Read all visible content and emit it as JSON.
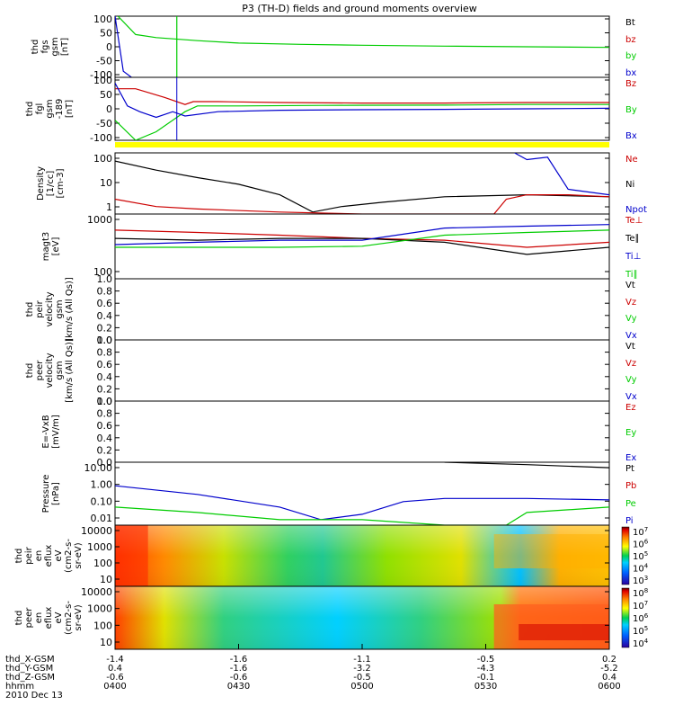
{
  "title": "P3 (TH-D) fields and ground moments overview",
  "colors": {
    "black": "#000000",
    "red": "#cc0000",
    "green": "#00cc00",
    "blue": "#0000cc"
  },
  "panels": [
    {
      "id": "fgs",
      "ylabel": [
        "thd",
        "fgs",
        "gsm",
        "[nT]"
      ],
      "yticks": [
        "100",
        "50",
        "0",
        "-50",
        "-100"
      ],
      "legend": [
        {
          "t": "Bt",
          "c": "black"
        },
        {
          "t": "bz",
          "c": "red"
        },
        {
          "t": "by",
          "c": "green"
        },
        {
          "t": "bx",
          "c": "blue"
        }
      ]
    },
    {
      "id": "fgl",
      "ylabel": [
        "thd",
        "fgl",
        "gsm",
        "-189",
        "[nT]"
      ],
      "yticks": [
        "100",
        "50",
        "0",
        "-50",
        "-100"
      ],
      "legend": [
        {
          "t": "Bz",
          "c": "red"
        },
        {
          "t": "By",
          "c": "green"
        },
        {
          "t": "Bx",
          "c": "blue"
        }
      ]
    },
    {
      "id": "density",
      "ylabel": [
        "Density",
        "[1/cc]",
        "[cm-3]"
      ],
      "yticks": [
        "100",
        "10",
        "1"
      ],
      "legend": [
        {
          "t": "Ne",
          "c": "red"
        },
        {
          "t": "Ni",
          "c": "black"
        },
        {
          "t": "Npot",
          "c": "blue"
        }
      ]
    },
    {
      "id": "temp",
      "ylabel": [
        "magt3",
        "[eV]"
      ],
      "yticks": [
        "1000",
        "100"
      ],
      "legend": [
        {
          "t": "Te⊥",
          "c": "red"
        },
        {
          "t": "Te∥",
          "c": "black"
        },
        {
          "t": "Ti⊥",
          "c": "blue"
        },
        {
          "t": "Ti∥",
          "c": "green"
        }
      ]
    },
    {
      "id": "vi",
      "ylabel": [
        "thd",
        "peir",
        "velocity",
        "gsm",
        "[km/s (All Qs)]"
      ],
      "yticks": [
        "1.0",
        "0.8",
        "0.6",
        "0.4",
        "0.2",
        "0.0"
      ],
      "legend": [
        {
          "t": "Vt",
          "c": "black"
        },
        {
          "t": "Vz",
          "c": "red"
        },
        {
          "t": "Vy",
          "c": "green"
        },
        {
          "t": "Vx",
          "c": "blue"
        }
      ]
    },
    {
      "id": "ve",
      "ylabel": [
        "thd",
        "peer",
        "velocity",
        "gsm",
        "[km/s (All Qs)]"
      ],
      "yticks": [
        "1.0",
        "0.8",
        "0.6",
        "0.4",
        "0.2",
        "0.0"
      ],
      "legend": [
        {
          "t": "Vt",
          "c": "black"
        },
        {
          "t": "Vz",
          "c": "red"
        },
        {
          "t": "Vy",
          "c": "green"
        },
        {
          "t": "Vx",
          "c": "blue"
        }
      ]
    },
    {
      "id": "efield",
      "ylabel": [
        "E=-VxB",
        "[mV/m]"
      ],
      "yticks": [
        "1.0",
        "0.8",
        "0.6",
        "0.4",
        "0.2",
        "0.0"
      ],
      "legend": [
        {
          "t": "Ez",
          "c": "red"
        },
        {
          "t": "Ey",
          "c": "green"
        },
        {
          "t": "Ex",
          "c": "blue"
        }
      ]
    },
    {
      "id": "pressure",
      "ylabel": [
        "Pressure",
        "[nPa]"
      ],
      "yticks": [
        "10.00",
        "1.00",
        "0.10",
        "0.01"
      ],
      "legend": [
        {
          "t": "Pt",
          "c": "black"
        },
        {
          "t": "Pb",
          "c": "red"
        },
        {
          "t": "Pe",
          "c": "green"
        },
        {
          "t": "Pi",
          "c": "blue"
        }
      ]
    },
    {
      "id": "ispec",
      "ylabel": [
        "thd",
        "peir",
        "en",
        "eflux",
        "eV",
        "(cm2-s-",
        "sr-eV)"
      ],
      "yticks": [
        "10000",
        "1000",
        "100",
        "10"
      ],
      "cbar": [
        "10^7",
        "10^6",
        "10^5",
        "10^4",
        "10^3"
      ]
    },
    {
      "id": "espec",
      "ylabel": [
        "thd",
        "peer",
        "en",
        "eflux",
        "eV",
        "(cm2-s-",
        "sr-eV)"
      ],
      "yticks": [
        "10000",
        "1000",
        "100",
        "10"
      ],
      "cbar": [
        "10^8",
        "10^7",
        "10^6",
        "10^5",
        "10^4"
      ]
    }
  ],
  "xaxis": {
    "row_labels": [
      "thd_X-GSM",
      "thd_Y-GSM",
      "thd_Z-GSM",
      "hhmm"
    ],
    "date": "2010 Dec 13",
    "ticks": [
      {
        "x": "-1.4",
        "y": "0.4",
        "z": "-0.6",
        "t": "0400"
      },
      {
        "x": "-1.6",
        "y": "-1.6",
        "z": "-0.6",
        "t": "0430"
      },
      {
        "x": "-1.1",
        "y": "-3.2",
        "z": "-0.5",
        "t": "0500"
      },
      {
        "x": "-0.5",
        "y": "-4.3",
        "z": "-0.1",
        "t": "0530"
      },
      {
        "x": "0.2",
        "y": "-5.2",
        "z": "0.4",
        "t": "0600"
      }
    ]
  },
  "chart_data": {
    "type": "line",
    "x_unit": "hhmm",
    "xlim": [
      "0400",
      "0600"
    ],
    "panels": [
      {
        "id": "fgs",
        "scale": "linear",
        "ylim": [
          -100,
          100
        ],
        "series": [
          {
            "name": "by",
            "values": [
              [
                0,
                110
              ],
              [
                5,
                40
              ],
              [
                10,
                30
              ],
              [
                20,
                20
              ],
              [
                30,
                12
              ],
              [
                45,
                8
              ],
              [
                60,
                5
              ],
              [
                80,
                2
              ],
              [
                100,
                0
              ],
              [
                120,
                -2
              ]
            ]
          },
          {
            "name": "bx",
            "values": [
              [
                0,
                100
              ],
              [
                2,
                -80
              ],
              [
                4,
                -100
              ]
            ]
          }
        ]
      },
      {
        "id": "fgl",
        "scale": "linear",
        "ylim": [
          -120,
          100
        ],
        "series": [
          {
            "name": "Bz",
            "values": [
              [
                0,
                60
              ],
              [
                5,
                60
              ],
              [
                12,
                30
              ],
              [
                17,
                5
              ],
              [
                19,
                15
              ],
              [
                25,
                15
              ],
              [
                40,
                12
              ],
              [
                60,
                10
              ],
              [
                80,
                10
              ],
              [
                100,
                12
              ],
              [
                120,
                12
              ]
            ]
          },
          {
            "name": "By",
            "values": [
              [
                0,
                -50
              ],
              [
                5,
                -120
              ],
              [
                10,
                -90
              ],
              [
                17,
                -20
              ],
              [
                20,
                0
              ],
              [
                30,
                0
              ],
              [
                50,
                2
              ],
              [
                80,
                3
              ],
              [
                100,
                5
              ],
              [
                120,
                5
              ]
            ]
          },
          {
            "name": "Bx",
            "values": [
              [
                0,
                80
              ],
              [
                3,
                0
              ],
              [
                6,
                -20
              ],
              [
                10,
                -40
              ],
              [
                14,
                -20
              ],
              [
                17,
                -35
              ],
              [
                25,
                -20
              ],
              [
                40,
                -15
              ],
              [
                60,
                -13
              ],
              [
                80,
                -12
              ],
              [
                100,
                -10
              ],
              [
                120,
                -8
              ]
            ]
          }
        ]
      },
      {
        "id": "density",
        "scale": "log",
        "ylim": [
          0.5,
          150
        ],
        "series": [
          {
            "name": "Ni",
            "values": [
              [
                0,
                70
              ],
              [
                10,
                30
              ],
              [
                20,
                15
              ],
              [
                30,
                8
              ],
              [
                40,
                3
              ],
              [
                48,
                0.6
              ],
              [
                55,
                1
              ],
              [
                65,
                1.5
              ],
              [
                80,
                2.5
              ],
              [
                100,
                3
              ],
              [
                120,
                2.5
              ]
            ]
          },
          {
            "name": "Ne",
            "values": [
              [
                0,
                2
              ],
              [
                10,
                1
              ],
              [
                20,
                0.8
              ],
              [
                40,
                0.6
              ],
              [
                60,
                0.5
              ],
              [
                80,
                0.5
              ],
              [
                92,
                0.5
              ],
              [
                95,
                2
              ],
              [
                100,
                3
              ],
              [
                110,
                3
              ],
              [
                120,
                2.5
              ]
            ]
          },
          {
            "name": "Npot",
            "values": [
              [
                97,
                150
              ],
              [
                100,
                80
              ],
              [
                105,
                100
              ],
              [
                110,
                5
              ],
              [
                120,
                3
              ]
            ]
          }
        ]
      },
      {
        "id": "temp",
        "scale": "log",
        "ylim": [
          50,
          2000
        ],
        "series": [
          {
            "name": "Te⊥",
            "values": [
              [
                0,
                800
              ],
              [
                20,
                700
              ],
              [
                40,
                600
              ],
              [
                60,
                500
              ],
              [
                80,
                450
              ],
              [
                100,
                300
              ],
              [
                120,
                400
              ]
            ]
          },
          {
            "name": "Te∥",
            "values": [
              [
                0,
                500
              ],
              [
                20,
                450
              ],
              [
                40,
                500
              ],
              [
                60,
                500
              ],
              [
                80,
                400
              ],
              [
                100,
                200
              ],
              [
                120,
                300
              ]
            ]
          },
          {
            "name": "Ti⊥",
            "values": [
              [
                0,
                350
              ],
              [
                20,
                400
              ],
              [
                40,
                450
              ],
              [
                60,
                450
              ],
              [
                80,
                900
              ],
              [
                100,
                1000
              ],
              [
                120,
                1100
              ]
            ]
          },
          {
            "name": "Ti∥",
            "values": [
              [
                0,
                300
              ],
              [
                20,
                300
              ],
              [
                40,
                300
              ],
              [
                60,
                320
              ],
              [
                80,
                600
              ],
              [
                100,
                700
              ],
              [
                120,
                800
              ]
            ]
          }
        ]
      },
      {
        "id": "pressure",
        "scale": "log",
        "ylim": [
          0.01,
          30
        ],
        "series": [
          {
            "name": "Pt",
            "values": [
              [
                80,
                30
              ],
              [
                100,
                22
              ],
              [
                120,
                15
              ]
            ]
          },
          {
            "name": "Pi",
            "values": [
              [
                0,
                1.5
              ],
              [
                20,
                0.5
              ],
              [
                40,
                0.1
              ],
              [
                50,
                0.02
              ],
              [
                60,
                0.04
              ],
              [
                70,
                0.2
              ],
              [
                80,
                0.3
              ],
              [
                100,
                0.3
              ],
              [
                120,
                0.25
              ]
            ]
          },
          {
            "name": "Pe",
            "values": [
              [
                0,
                0.1
              ],
              [
                20,
                0.05
              ],
              [
                40,
                0.02
              ],
              [
                60,
                0.02
              ],
              [
                80,
                0.01
              ],
              [
                95,
                0.01
              ],
              [
                100,
                0.05
              ],
              [
                120,
                0.1
              ]
            ]
          }
        ]
      }
    ]
  }
}
